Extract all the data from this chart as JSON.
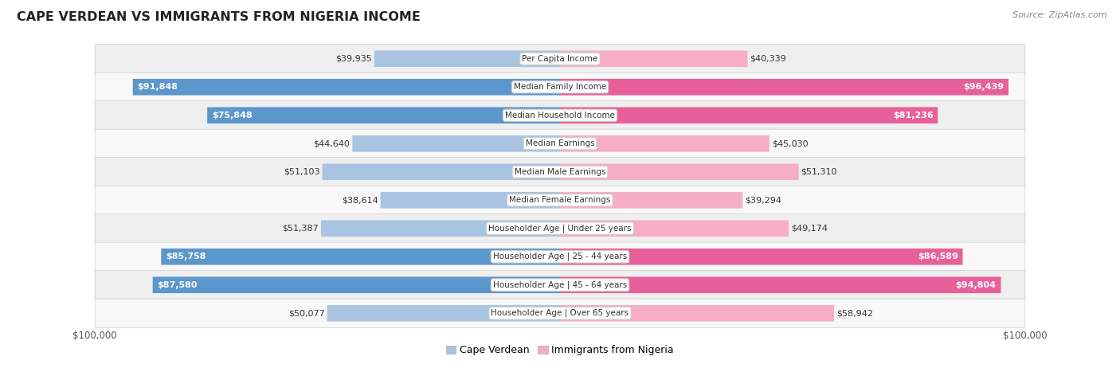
{
  "title": "CAPE VERDEAN VS IMMIGRANTS FROM NIGERIA INCOME",
  "source": "Source: ZipAtlas.com",
  "categories": [
    "Per Capita Income",
    "Median Family Income",
    "Median Household Income",
    "Median Earnings",
    "Median Male Earnings",
    "Median Female Earnings",
    "Householder Age | Under 25 years",
    "Householder Age | 25 - 44 years",
    "Householder Age | 45 - 64 years",
    "Householder Age | Over 65 years"
  ],
  "cape_verdean": [
    39935,
    91848,
    75848,
    44640,
    51103,
    38614,
    51387,
    85758,
    87580,
    50077
  ],
  "nigeria": [
    40339,
    96439,
    81236,
    45030,
    51310,
    39294,
    49174,
    86589,
    94804,
    58942
  ],
  "max_value": 100000,
  "blue_light": "#a8c4e0",
  "blue_dark": "#5b96cc",
  "pink_light": "#f5aec5",
  "pink_dark": "#e8609a",
  "row_bg_light": "#efefef",
  "row_bg_dark": "#e2e2e2",
  "row_border": "#d0d0d0",
  "bar_height": 0.58,
  "large_threshold": 70000,
  "figsize": [
    14.06,
    4.67
  ],
  "dpi": 100
}
